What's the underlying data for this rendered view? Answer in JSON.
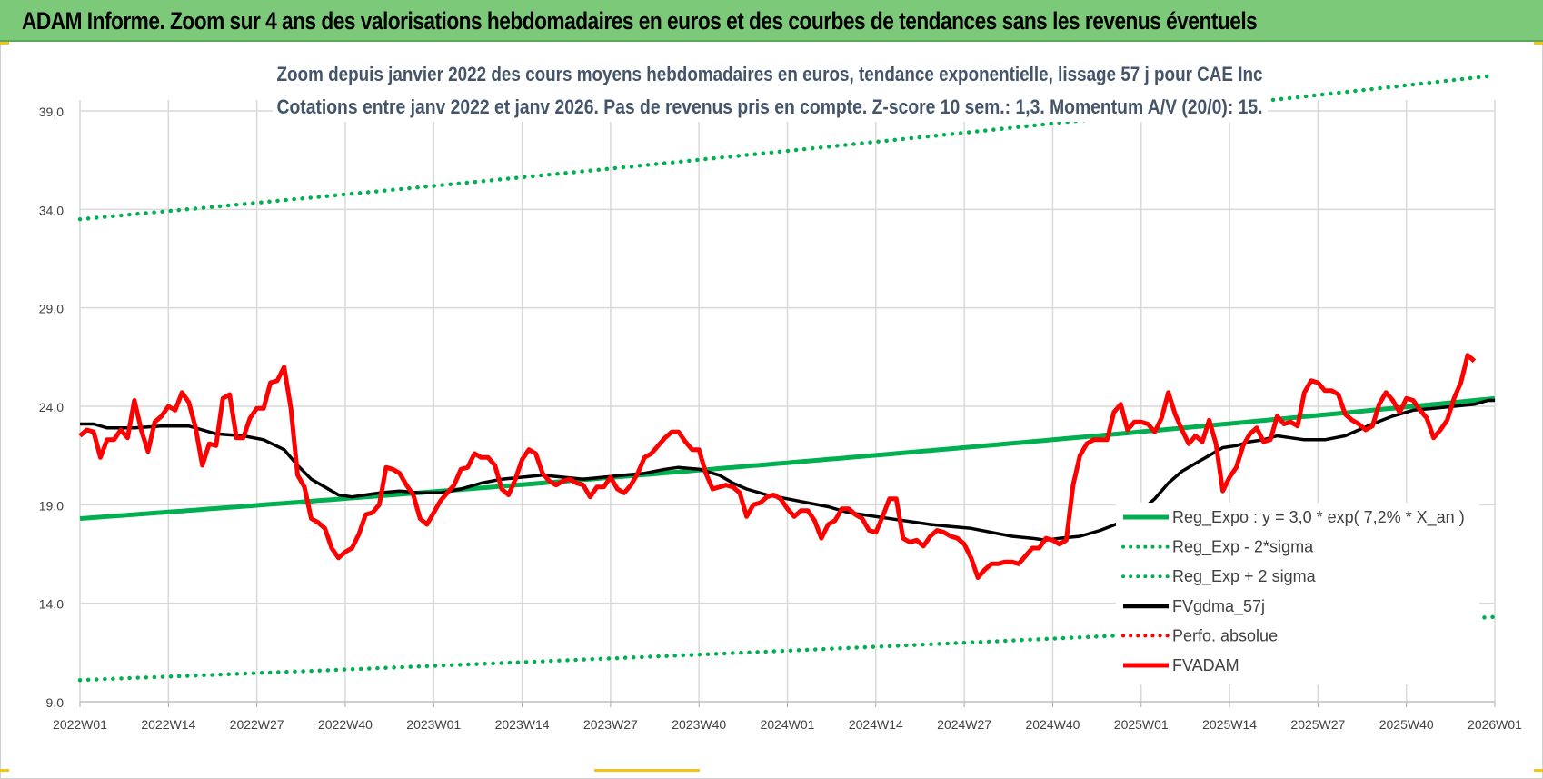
{
  "banner": {
    "title": "ADAM Informe. Zoom sur 4 ans des valorisations hebdomadaires en euros et des courbes de tendances sans les revenus éventuels"
  },
  "colors": {
    "banner_bg": "#7dc97a",
    "trend": "#00b050",
    "fvgdma": "#000000",
    "fvadam": "#ff0000",
    "perfo": "#ff0000",
    "grid": "#d9d9d9"
  },
  "chart_data": {
    "type": "line",
    "title_line1": "Zoom depuis janvier 2022 des cours moyens hebdomadaires en euros, tendance exponentielle, lissage 57 j pour CAE Inc",
    "title_line2": "Cotations entre janv 2022 et janv 2026. Pas de revenus pris en compte. Z-score 10 sem.: 1,3. Momentum A/V (20/0): 15.",
    "ylim": [
      9.0,
      39.0
    ],
    "yticks": [
      "9,0",
      "14,0",
      "19,0",
      "24,0",
      "29,0",
      "34,0",
      "39,0"
    ],
    "ytick_values": [
      9,
      14,
      19,
      24,
      29,
      34,
      39
    ],
    "xticks": [
      "2022W01",
      "2022W14",
      "2022W27",
      "2022W40",
      "2023W01",
      "2023W14",
      "2023W27",
      "2023W40",
      "2024W01",
      "2024W14",
      "2024W27",
      "2024W40",
      "2025W01",
      "2025W14",
      "2025W27",
      "2025W40",
      "2026W01"
    ],
    "week_count": 209,
    "legend": [
      {
        "key": "reg_expo",
        "label": "Reg_Expo : y = 3,0 * exp( 7,2% *  X_an )",
        "style": "solid",
        "color": "#00b050"
      },
      {
        "key": "reg_minus",
        "label": "Reg_Exp - 2*sigma",
        "style": "dotted",
        "color": "#00b050"
      },
      {
        "key": "reg_plus",
        "label": "Reg_Exp + 2 sigma",
        "style": "dotted",
        "color": "#00b050"
      },
      {
        "key": "fvgdma",
        "label": "FVgdma_57j",
        "style": "solid",
        "color": "#000000"
      },
      {
        "key": "perfo",
        "label": "Perfo. absolue",
        "style": "dotted",
        "color": "#ff0000"
      },
      {
        "key": "fvadam",
        "label": "FVADAM",
        "style": "solid",
        "color": "#ff0000"
      }
    ],
    "series": [
      {
        "name": "Reg_Expo",
        "points": [
          [
            0,
            18.3
          ],
          [
            208,
            24.4
          ]
        ]
      },
      {
        "name": "Reg_Exp + 2 sigma",
        "points": [
          [
            0,
            33.5
          ],
          [
            208,
            40.8
          ]
        ]
      },
      {
        "name": "Reg_Exp - 2*sigma",
        "points": [
          [
            0,
            10.1
          ],
          [
            208,
            13.3
          ]
        ]
      },
      {
        "name": "FVgdma_57j",
        "points": [
          [
            0,
            23.1
          ],
          [
            2,
            23.1
          ],
          [
            4,
            22.9
          ],
          [
            8,
            22.9
          ],
          [
            12,
            23.0
          ],
          [
            16,
            23.0
          ],
          [
            18,
            22.8
          ],
          [
            20,
            22.6
          ],
          [
            24,
            22.5
          ],
          [
            27,
            22.3
          ],
          [
            30,
            21.8
          ],
          [
            32,
            21.0
          ],
          [
            34,
            20.3
          ],
          [
            36,
            19.9
          ],
          [
            38,
            19.5
          ],
          [
            40,
            19.4
          ],
          [
            42,
            19.5
          ],
          [
            44,
            19.6
          ],
          [
            47,
            19.7
          ],
          [
            50,
            19.6
          ],
          [
            53,
            19.6
          ],
          [
            56,
            19.8
          ],
          [
            59,
            20.1
          ],
          [
            62,
            20.3
          ],
          [
            65,
            20.4
          ],
          [
            68,
            20.5
          ],
          [
            71,
            20.4
          ],
          [
            74,
            20.3
          ],
          [
            77,
            20.4
          ],
          [
            80,
            20.5
          ],
          [
            83,
            20.6
          ],
          [
            86,
            20.8
          ],
          [
            88,
            20.9
          ],
          [
            91,
            20.8
          ],
          [
            94,
            20.5
          ],
          [
            96,
            20.1
          ],
          [
            98,
            19.8
          ],
          [
            101,
            19.5
          ],
          [
            104,
            19.3
          ],
          [
            107,
            19.1
          ],
          [
            110,
            18.9
          ],
          [
            113,
            18.6
          ],
          [
            117,
            18.4
          ],
          [
            121,
            18.2
          ],
          [
            125,
            18.0
          ],
          [
            128,
            17.9
          ],
          [
            131,
            17.8
          ],
          [
            134,
            17.6
          ],
          [
            137,
            17.4
          ],
          [
            140,
            17.3
          ],
          [
            142,
            17.2
          ],
          [
            144,
            17.3
          ],
          [
            147,
            17.4
          ],
          [
            150,
            17.7
          ],
          [
            153,
            18.1
          ],
          [
            156,
            18.7
          ],
          [
            158,
            19.3
          ],
          [
            160,
            20.1
          ],
          [
            162,
            20.7
          ],
          [
            164,
            21.1
          ],
          [
            166,
            21.5
          ],
          [
            168,
            21.9
          ],
          [
            170,
            22.0
          ],
          [
            172,
            22.2
          ],
          [
            174,
            22.3
          ],
          [
            176,
            22.5
          ],
          [
            178,
            22.4
          ],
          [
            180,
            22.3
          ],
          [
            183,
            22.3
          ],
          [
            186,
            22.5
          ],
          [
            188,
            22.8
          ],
          [
            190,
            23.1
          ],
          [
            193,
            23.5
          ],
          [
            196,
            23.8
          ],
          [
            199,
            23.9
          ],
          [
            202,
            24.0
          ],
          [
            205,
            24.1
          ],
          [
            207,
            24.3
          ],
          [
            208,
            24.3
          ]
        ]
      },
      {
        "name": "FVADAM",
        "points": [
          [
            0,
            22.5
          ],
          [
            1,
            22.8
          ],
          [
            2,
            22.7
          ],
          [
            3,
            21.4
          ],
          [
            4,
            22.3
          ],
          [
            5,
            22.3
          ],
          [
            6,
            22.8
          ],
          [
            7,
            22.4
          ],
          [
            8,
            24.3
          ],
          [
            9,
            22.8
          ],
          [
            10,
            21.7
          ],
          [
            11,
            23.2
          ],
          [
            12,
            23.5
          ],
          [
            13,
            24.0
          ],
          [
            14,
            23.8
          ],
          [
            15,
            24.7
          ],
          [
            16,
            24.2
          ],
          [
            17,
            22.9
          ],
          [
            18,
            21.0
          ],
          [
            19,
            22.1
          ],
          [
            20,
            22.0
          ],
          [
            21,
            24.4
          ],
          [
            22,
            24.6
          ],
          [
            23,
            22.4
          ],
          [
            24,
            22.4
          ],
          [
            25,
            23.4
          ],
          [
            26,
            23.9
          ],
          [
            27,
            23.9
          ],
          [
            28,
            25.2
          ],
          [
            29,
            25.3
          ],
          [
            30,
            26.0
          ],
          [
            31,
            23.9
          ],
          [
            32,
            20.5
          ],
          [
            33,
            19.9
          ],
          [
            34,
            18.3
          ],
          [
            35,
            18.1
          ],
          [
            36,
            17.8
          ],
          [
            37,
            16.8
          ],
          [
            38,
            16.3
          ],
          [
            39,
            16.6
          ],
          [
            40,
            16.8
          ],
          [
            41,
            17.5
          ],
          [
            42,
            18.5
          ],
          [
            43,
            18.6
          ],
          [
            44,
            19.0
          ],
          [
            45,
            20.9
          ],
          [
            46,
            20.8
          ],
          [
            47,
            20.6
          ],
          [
            48,
            20.0
          ],
          [
            49,
            19.5
          ],
          [
            50,
            18.3
          ],
          [
            51,
            18.0
          ],
          [
            52,
            18.6
          ],
          [
            53,
            19.2
          ],
          [
            54,
            19.6
          ],
          [
            55,
            20.0
          ],
          [
            56,
            20.8
          ],
          [
            57,
            20.9
          ],
          [
            58,
            21.6
          ],
          [
            59,
            21.4
          ],
          [
            60,
            21.4
          ],
          [
            61,
            21.0
          ],
          [
            62,
            19.8
          ],
          [
            63,
            19.5
          ],
          [
            64,
            20.3
          ],
          [
            65,
            21.3
          ],
          [
            66,
            21.8
          ],
          [
            67,
            21.6
          ],
          [
            68,
            20.6
          ],
          [
            69,
            20.2
          ],
          [
            70,
            20.0
          ],
          [
            71,
            20.2
          ],
          [
            72,
            20.3
          ],
          [
            73,
            20.1
          ],
          [
            74,
            20.0
          ],
          [
            75,
            19.4
          ],
          [
            76,
            19.9
          ],
          [
            77,
            19.9
          ],
          [
            78,
            20.4
          ],
          [
            79,
            19.8
          ],
          [
            80,
            19.6
          ],
          [
            81,
            20.0
          ],
          [
            82,
            20.6
          ],
          [
            83,
            21.4
          ],
          [
            84,
            21.6
          ],
          [
            85,
            22.0
          ],
          [
            86,
            22.4
          ],
          [
            87,
            22.7
          ],
          [
            88,
            22.7
          ],
          [
            89,
            22.2
          ],
          [
            90,
            21.8
          ],
          [
            91,
            21.8
          ],
          [
            92,
            20.6
          ],
          [
            93,
            19.8
          ],
          [
            94,
            19.9
          ],
          [
            95,
            20.0
          ],
          [
            96,
            19.9
          ],
          [
            97,
            19.6
          ],
          [
            98,
            18.4
          ],
          [
            99,
            19.0
          ],
          [
            100,
            19.1
          ],
          [
            101,
            19.4
          ],
          [
            102,
            19.5
          ],
          [
            103,
            19.3
          ],
          [
            104,
            18.8
          ],
          [
            105,
            18.4
          ],
          [
            106,
            18.7
          ],
          [
            107,
            18.7
          ],
          [
            108,
            18.2
          ],
          [
            109,
            17.3
          ],
          [
            110,
            18.0
          ],
          [
            111,
            18.2
          ],
          [
            112,
            18.8
          ],
          [
            113,
            18.8
          ],
          [
            114,
            18.5
          ],
          [
            115,
            18.3
          ],
          [
            116,
            17.7
          ],
          [
            117,
            17.6
          ],
          [
            118,
            18.4
          ],
          [
            119,
            19.3
          ],
          [
            120,
            19.3
          ],
          [
            121,
            17.3
          ],
          [
            122,
            17.1
          ],
          [
            123,
            17.2
          ],
          [
            124,
            16.9
          ],
          [
            125,
            17.4
          ],
          [
            126,
            17.7
          ],
          [
            127,
            17.6
          ],
          [
            128,
            17.4
          ],
          [
            129,
            17.3
          ],
          [
            130,
            17.0
          ],
          [
            131,
            16.3
          ],
          [
            132,
            15.3
          ],
          [
            133,
            15.7
          ],
          [
            134,
            16.0
          ],
          [
            135,
            16.0
          ],
          [
            136,
            16.1
          ],
          [
            137,
            16.1
          ],
          [
            138,
            16.0
          ],
          [
            139,
            16.4
          ],
          [
            140,
            16.8
          ],
          [
            141,
            16.8
          ],
          [
            142,
            17.3
          ],
          [
            143,
            17.2
          ],
          [
            144,
            17.0
          ],
          [
            145,
            17.2
          ],
          [
            146,
            20.0
          ],
          [
            147,
            21.5
          ],
          [
            148,
            22.1
          ],
          [
            149,
            22.3
          ],
          [
            150,
            22.3
          ],
          [
            151,
            22.3
          ],
          [
            152,
            23.7
          ],
          [
            153,
            24.1
          ],
          [
            154,
            22.8
          ],
          [
            155,
            23.2
          ],
          [
            156,
            23.2
          ],
          [
            157,
            23.1
          ],
          [
            158,
            22.7
          ],
          [
            159,
            23.4
          ],
          [
            160,
            24.7
          ],
          [
            161,
            23.6
          ],
          [
            162,
            22.8
          ],
          [
            163,
            22.1
          ],
          [
            164,
            22.5
          ],
          [
            165,
            22.2
          ],
          [
            166,
            23.3
          ],
          [
            167,
            22.1
          ],
          [
            168,
            19.7
          ],
          [
            169,
            20.4
          ],
          [
            170,
            20.9
          ],
          [
            171,
            22.0
          ],
          [
            172,
            22.6
          ],
          [
            173,
            22.9
          ],
          [
            174,
            22.2
          ],
          [
            175,
            22.3
          ],
          [
            176,
            23.5
          ],
          [
            177,
            23.1
          ],
          [
            178,
            23.2
          ],
          [
            179,
            23.0
          ],
          [
            180,
            24.7
          ],
          [
            181,
            25.3
          ],
          [
            182,
            25.2
          ],
          [
            183,
            24.8
          ],
          [
            184,
            24.8
          ],
          [
            185,
            24.6
          ],
          [
            186,
            23.6
          ],
          [
            187,
            23.3
          ],
          [
            188,
            23.1
          ],
          [
            189,
            22.8
          ],
          [
            190,
            23.0
          ],
          [
            191,
            24.1
          ],
          [
            192,
            24.7
          ],
          [
            193,
            24.3
          ],
          [
            194,
            23.7
          ],
          [
            195,
            24.4
          ],
          [
            196,
            24.3
          ],
          [
            197,
            23.8
          ],
          [
            198,
            23.4
          ],
          [
            199,
            22.4
          ],
          [
            200,
            22.8
          ],
          [
            201,
            23.3
          ],
          [
            202,
            24.4
          ],
          [
            203,
            25.2
          ],
          [
            204,
            26.6
          ],
          [
            205,
            26.3
          ]
        ]
      }
    ]
  }
}
